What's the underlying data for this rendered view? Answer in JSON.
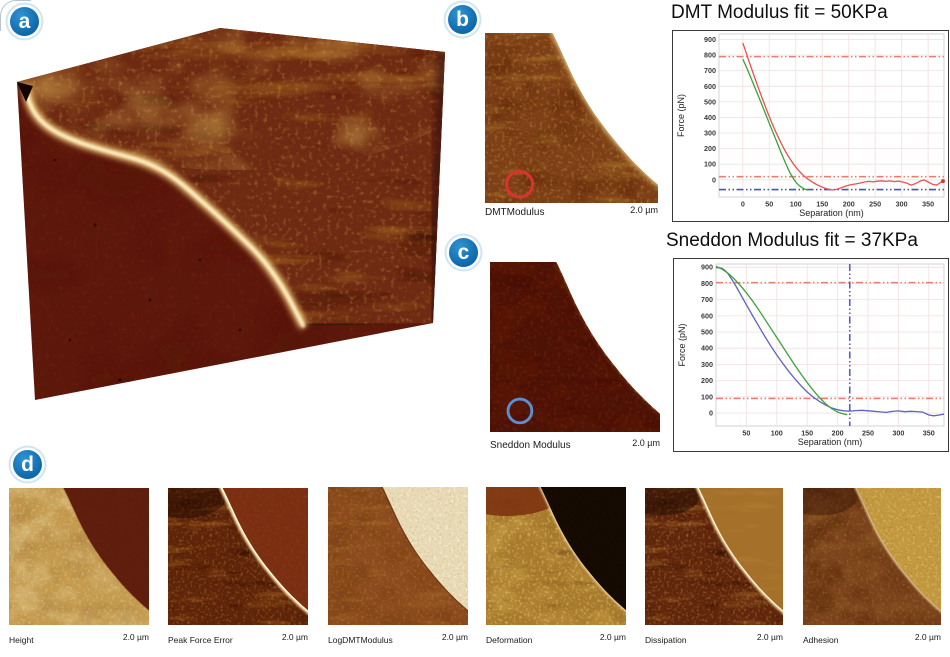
{
  "badges": {
    "a": "a",
    "b": "b",
    "c": "c",
    "d": "d"
  },
  "colors": {
    "badge_blue": "#1477bd",
    "curve_red": "#e8534e",
    "fit_green": "#3aa33a",
    "curve_blue": "#5c63c0",
    "guide_red": "#e87d74",
    "guide_blue": "#4a52b2",
    "afm_dark_maroon": "#5d180c",
    "afm_cell_brown": "#7d3f16",
    "afm_ridge_gold": "#f3cd7a"
  },
  "panel_b": {
    "image_label": "DMTModulus",
    "scale_label": "2.0 µm",
    "marker": "red-circle"
  },
  "panel_c": {
    "image_label": "Sneddon Modulus",
    "scale_label": "2.0 µm",
    "marker": "blue-circle"
  },
  "panel_d": {
    "images": [
      {
        "label": "Height",
        "scale_label": "2.0 µm"
      },
      {
        "label": "Peak Force Error",
        "scale_label": "2.0 µm"
      },
      {
        "label": "LogDMTModulus",
        "scale_label": "2.0 µm"
      },
      {
        "label": "Deformation",
        "scale_label": "2.0 µm"
      },
      {
        "label": "Dissipation",
        "scale_label": "2.0 µm"
      },
      {
        "label": "Adhesion",
        "scale_label": "2.0 µm"
      }
    ]
  },
  "chart_data": [
    {
      "type": "line",
      "title": "DMT Modulus fit = 50KPa",
      "xlabel": "Separation (nm)",
      "ylabel": "Force (pN)",
      "xlim": [
        -45,
        380
      ],
      "ylim": [
        -110,
        935
      ],
      "xticks": [
        0,
        50,
        100,
        150,
        200,
        250,
        300,
        350
      ],
      "yticks": [
        0,
        100,
        200,
        300,
        400,
        500,
        600,
        700,
        800,
        900
      ],
      "grid": true,
      "legend": "none",
      "guides": [
        {
          "kind": "hline",
          "value": 790,
          "color": "#e87d74"
        },
        {
          "kind": "hline",
          "value": 20,
          "color": "#e87d74"
        },
        {
          "kind": "hline",
          "value": -62,
          "color": "#4a52b2"
        }
      ],
      "series": [
        {
          "name": "force curve",
          "color": "#e8534e",
          "x": [
            0,
            6,
            12,
            18,
            24,
            30,
            36,
            42,
            48,
            54,
            60,
            66,
            72,
            78,
            84,
            90,
            96,
            102,
            108,
            114,
            120,
            127,
            134,
            141,
            148,
            155,
            162,
            169,
            176,
            183,
            190,
            198,
            206,
            214,
            222,
            230,
            238,
            246,
            254,
            262,
            270,
            278,
            286,
            294,
            302,
            310,
            318,
            326,
            334,
            342,
            350,
            358,
            366,
            372,
            378
          ],
          "y": [
            878,
            818,
            756,
            698,
            640,
            584,
            528,
            474,
            422,
            372,
            324,
            280,
            238,
            198,
            162,
            130,
            100,
            74,
            50,
            30,
            12,
            -5,
            -20,
            -33,
            -44,
            -53,
            -60,
            -65,
            -62,
            -54,
            -45,
            -36,
            -30,
            -26,
            -20,
            -14,
            -10,
            -13,
            -9,
            -6,
            -10,
            -7,
            -11,
            -8,
            -14,
            -22,
            -34,
            -24,
            -10,
            0,
            -14,
            -28,
            -34,
            -20,
            -8
          ]
        },
        {
          "name": "DMT fit",
          "color": "#3aa33a",
          "x": [
            0,
            8,
            16,
            24,
            32,
            40,
            48,
            56,
            64,
            72,
            80,
            88,
            96,
            102,
            107,
            111,
            115,
            119,
            123
          ],
          "y": [
            775,
            712,
            648,
            582,
            515,
            448,
            380,
            312,
            245,
            178,
            112,
            52,
            6,
            -22,
            -38,
            -48,
            -56,
            -62,
            -66
          ]
        }
      ],
      "end_marker": {
        "x": 378,
        "y": -8,
        "color": "#d83a35"
      }
    },
    {
      "type": "line",
      "title": "Sneddon Modulus fit = 37KPa",
      "xlabel": "Separation (nm)",
      "ylabel": "Force (pN)",
      "xlim": [
        0,
        375
      ],
      "ylim": [
        -80,
        920
      ],
      "xticks": [
        50,
        100,
        150,
        200,
        250,
        300,
        350
      ],
      "yticks": [
        0,
        100,
        200,
        300,
        400,
        500,
        600,
        700,
        800,
        900
      ],
      "grid": true,
      "legend": "none",
      "guides": [
        {
          "kind": "hline",
          "value": 805,
          "color": "#e87d74"
        },
        {
          "kind": "hline",
          "value": 90,
          "color": "#e87d74"
        },
        {
          "kind": "vline",
          "value": 220,
          "color": "#555fc0"
        }
      ],
      "series": [
        {
          "name": "force curve",
          "color": "#5c63c0",
          "x": [
            0,
            5,
            10,
            15,
            20,
            27,
            34,
            42,
            50,
            60,
            70,
            80,
            90,
            100,
            110,
            120,
            130,
            140,
            150,
            160,
            170,
            180,
            190,
            200,
            210,
            220,
            230,
            240,
            250,
            260,
            270,
            280,
            290,
            300,
            310,
            320,
            330,
            340,
            350,
            358,
            366,
            374,
            380
          ],
          "y": [
            898,
            897,
            893,
            880,
            858,
            820,
            775,
            722,
            668,
            602,
            538,
            475,
            415,
            358,
            305,
            255,
            210,
            168,
            130,
            98,
            72,
            50,
            32,
            20,
            14,
            12,
            15,
            17,
            14,
            11,
            7,
            4,
            10,
            13,
            8,
            11,
            9,
            6,
            -12,
            -17,
            -13,
            -7,
            -4
          ]
        },
        {
          "name": "Sneddon fit",
          "color": "#3aa33a",
          "x": [
            0,
            10,
            20,
            30,
            40,
            50,
            60,
            70,
            80,
            90,
            100,
            110,
            120,
            130,
            140,
            150,
            160,
            170,
            180,
            190,
            200,
            210,
            216
          ],
          "y": [
            905,
            888,
            862,
            828,
            788,
            742,
            692,
            638,
            582,
            524,
            466,
            408,
            350,
            294,
            240,
            188,
            140,
            96,
            58,
            28,
            6,
            -6,
            -10
          ]
        }
      ]
    }
  ]
}
